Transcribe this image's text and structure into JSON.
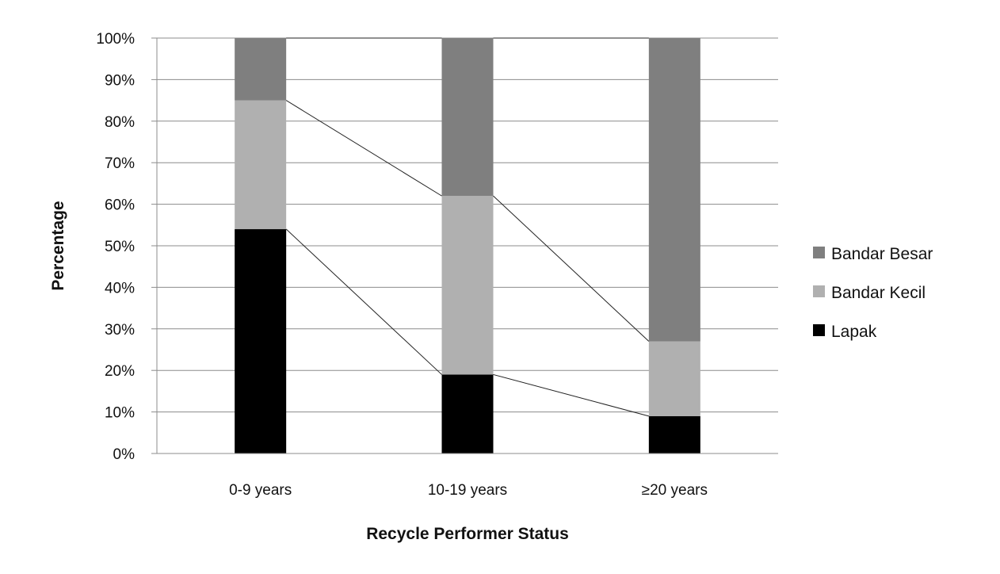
{
  "chart_data": {
    "type": "bar",
    "stacked": true,
    "title": "",
    "xlabel": "Recycle Performer Status",
    "ylabel": "Percentage",
    "categories": [
      "0-9 years",
      "10-19 years",
      "≥20 years"
    ],
    "ylim": [
      0,
      100
    ],
    "yticks": [
      "0%",
      "10%",
      "20%",
      "30%",
      "40%",
      "50%",
      "60%",
      "70%",
      "80%",
      "90%",
      "100%"
    ],
    "grid": true,
    "legend_position": "right",
    "series_connectors": true,
    "series": [
      {
        "name": "Lapak",
        "values": [
          54,
          19,
          9
        ],
        "color": "#000000"
      },
      {
        "name": "Bandar Kecil",
        "values": [
          31,
          43,
          18
        ],
        "color": "#b0b0b0"
      },
      {
        "name": "Bandar Besar",
        "values": [
          15,
          38,
          73
        ],
        "color": "#7f7f7f"
      }
    ],
    "legend_order": [
      "Bandar Besar",
      "Bandar Kecil",
      "Lapak"
    ]
  }
}
